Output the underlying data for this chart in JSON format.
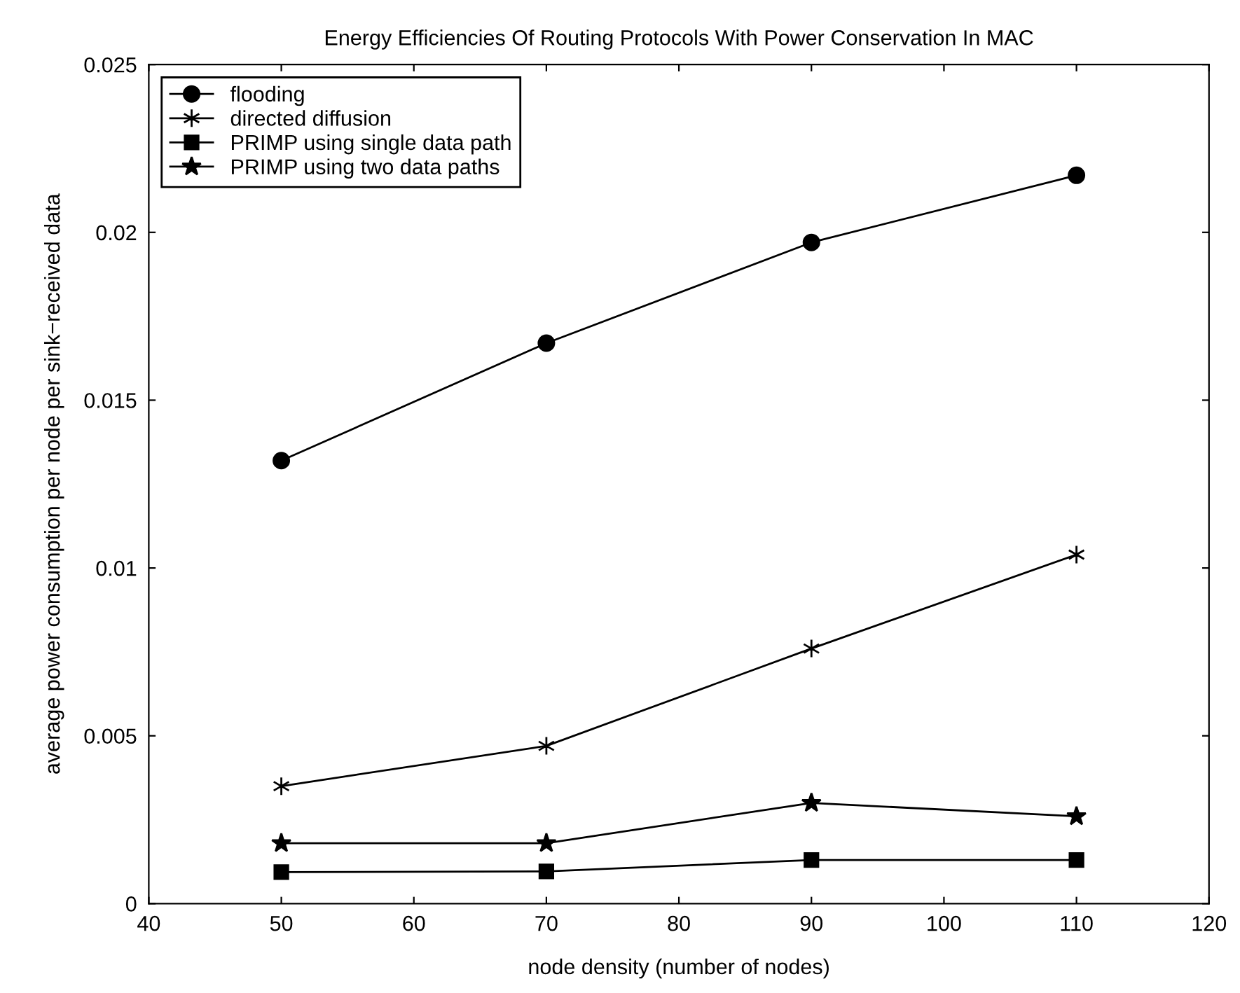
{
  "chart_data": {
    "type": "line",
    "title": "Energy Efficiencies Of Routing Protocols With Power Conservation In MAC",
    "xlabel": "node density (number of nodes)",
    "ylabel": "average power consumption per node per sink−received data",
    "x": [
      50,
      70,
      90,
      110
    ],
    "series": [
      {
        "name": "flooding",
        "color": "#000000",
        "marker": "circle",
        "values": [
          0.0132,
          0.0167,
          0.0197,
          0.0217
        ]
      },
      {
        "name": "directed diffusion",
        "color": "#000000",
        "marker": "cross",
        "values": [
          0.0035,
          0.0047,
          0.0076,
          0.0104
        ]
      },
      {
        "name": "PRIMP using single data path",
        "color": "#000000",
        "marker": "square",
        "values": [
          0.00094,
          0.00096,
          0.0013,
          0.0013
        ]
      },
      {
        "name": "PRIMP using two data paths",
        "color": "#000000",
        "marker": "star",
        "values": [
          0.0018,
          0.0018,
          0.003,
          0.0026
        ]
      }
    ],
    "xlim": [
      40,
      120
    ],
    "xticks": [
      40,
      50,
      60,
      70,
      80,
      90,
      100,
      110,
      120
    ],
    "ylim": [
      0,
      0.025
    ],
    "yticks": [
      0,
      0.005,
      0.01,
      0.015,
      0.02,
      0.025
    ],
    "grid": false,
    "legend": "top left",
    "line_style": "solid"
  }
}
